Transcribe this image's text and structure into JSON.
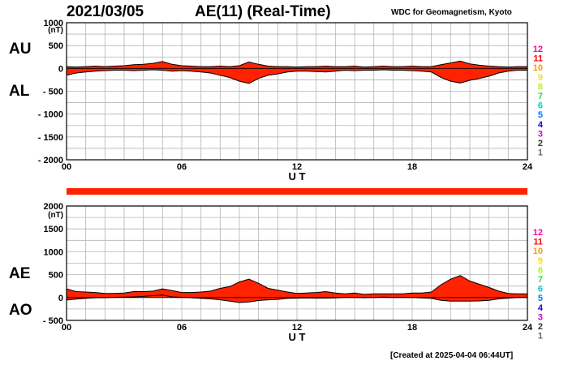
{
  "header": {
    "date": "2021/03/05",
    "title": "AE(11) (Real-Time)",
    "source": "WDC for Geomagnetism, Kyoto",
    "footer": "[Created at 2025-04-04 06:44UT]"
  },
  "colors": {
    "fill": "#ff2200",
    "line": "#000000",
    "grid": "#b4b4b4",
    "station_colors": [
      "#ff0099",
      "#ff0000",
      "#ff9900",
      "#ffdd00",
      "#aaff00",
      "#33dd33",
      "#00cccc",
      "#0077ff",
      "#2200cc",
      "#cc00cc",
      "#333333",
      "#666666",
      "#cccccc"
    ]
  },
  "stations": [
    "12",
    "11",
    "10",
    "9",
    "8",
    "7",
    "6",
    "5",
    "4",
    "3",
    "2",
    "1"
  ],
  "chart_data": [
    {
      "type": "area",
      "panel": "AU/AL",
      "side_labels": {
        "upper": "AU",
        "lower": "AL"
      },
      "unit": "(nT)",
      "xlabel": "U T",
      "ylabel": "",
      "xlim": [
        0,
        24
      ],
      "ylim": [
        -2000,
        1000
      ],
      "xticks": [
        "00",
        "06",
        "12",
        "18",
        "24"
      ],
      "yticks": [
        "1000",
        "500",
        "0",
        "- 500",
        "- 1000",
        "- 1500",
        "- 2000"
      ],
      "ytick_values": [
        1000,
        500,
        0,
        -500,
        -1000,
        -1500,
        -2000
      ],
      "grid": true,
      "x": [
        0,
        0.5,
        1,
        1.5,
        2,
        2.5,
        3,
        3.5,
        4,
        4.5,
        5,
        5.5,
        6,
        6.5,
        7,
        7.5,
        8,
        8.5,
        9,
        9.5,
        10,
        10.5,
        11,
        11.5,
        12,
        12.5,
        13,
        13.5,
        14,
        14.5,
        15,
        15.5,
        16,
        16.5,
        17,
        17.5,
        18,
        18.5,
        19,
        19.5,
        20,
        20.5,
        21,
        21.5,
        22,
        22.5,
        23,
        23.5,
        24
      ],
      "series": [
        {
          "name": "AU",
          "values": [
            40,
            30,
            40,
            50,
            40,
            50,
            60,
            80,
            90,
            110,
            150,
            90,
            60,
            50,
            40,
            40,
            50,
            40,
            60,
            140,
            90,
            50,
            40,
            40,
            30,
            40,
            40,
            50,
            40,
            40,
            50,
            30,
            40,
            50,
            40,
            40,
            50,
            40,
            40,
            80,
            120,
            160,
            100,
            70,
            50,
            40,
            30,
            40,
            40
          ]
        },
        {
          "name": "AL",
          "values": [
            -150,
            -100,
            -80,
            -60,
            -50,
            -40,
            -40,
            -50,
            -40,
            -30,
            -40,
            -60,
            -50,
            -60,
            -80,
            -100,
            -150,
            -200,
            -280,
            -330,
            -220,
            -150,
            -120,
            -80,
            -60,
            -60,
            -70,
            -80,
            -60,
            -40,
            -50,
            -40,
            -40,
            -30,
            -40,
            -40,
            -50,
            -60,
            -80,
            -200,
            -280,
            -320,
            -260,
            -220,
            -170,
            -100,
            -60,
            -40,
            -40
          ]
        }
      ]
    },
    {
      "type": "area",
      "panel": "AE/AO",
      "side_labels": {
        "upper": "AE",
        "lower": "AO"
      },
      "unit": "(nT)",
      "xlabel": "U T",
      "ylabel": "",
      "xlim": [
        0,
        24
      ],
      "ylim": [
        -500,
        2000
      ],
      "xticks": [
        "00",
        "06",
        "12",
        "18",
        "24"
      ],
      "yticks": [
        "2000",
        "1500",
        "1000",
        "500",
        "0",
        "- 500"
      ],
      "ytick_values": [
        2000,
        1500,
        1000,
        500,
        0,
        -500
      ],
      "grid": true,
      "x": [
        0,
        0.5,
        1,
        1.5,
        2,
        2.5,
        3,
        3.5,
        4,
        4.5,
        5,
        5.5,
        6,
        6.5,
        7,
        7.5,
        8,
        8.5,
        9,
        9.5,
        10,
        10.5,
        11,
        11.5,
        12,
        12.5,
        13,
        13.5,
        14,
        14.5,
        15,
        15.5,
        16,
        16.5,
        17,
        17.5,
        18,
        18.5,
        19,
        19.5,
        20,
        20.5,
        21,
        21.5,
        22,
        22.5,
        23,
        23.5,
        24
      ],
      "series": [
        {
          "name": "AE",
          "values": [
            190,
            130,
            120,
            110,
            90,
            90,
            100,
            130,
            130,
            140,
            190,
            150,
            110,
            110,
            120,
            140,
            200,
            240,
            340,
            400,
            310,
            200,
            160,
            120,
            90,
            100,
            110,
            130,
            100,
            80,
            100,
            70,
            80,
            80,
            80,
            80,
            100,
            100,
            120,
            280,
            400,
            480,
            360,
            290,
            220,
            140,
            90,
            80,
            80
          ]
        },
        {
          "name": "AO",
          "values": [
            -55,
            -35,
            -20,
            -5,
            -5,
            5,
            10,
            15,
            25,
            40,
            55,
            15,
            5,
            -5,
            -20,
            -30,
            -50,
            -80,
            -110,
            -95,
            -65,
            -50,
            -40,
            -20,
            -15,
            -10,
            -15,
            -15,
            -10,
            0,
            0,
            -5,
            0,
            10,
            0,
            0,
            0,
            -10,
            -20,
            -60,
            -80,
            -80,
            -80,
            -75,
            -60,
            -30,
            -15,
            0,
            0
          ]
        }
      ]
    }
  ]
}
